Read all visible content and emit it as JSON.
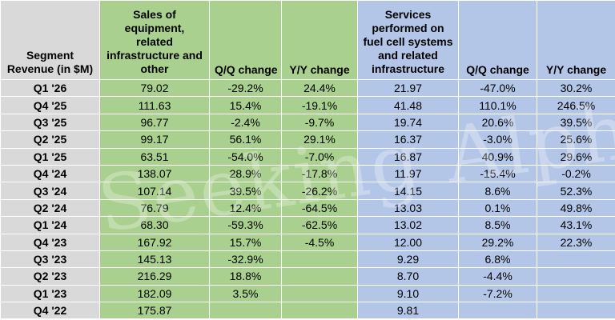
{
  "headers": {
    "segment": "Segment Revenue (in $M)",
    "equipment": "Sales of equipment, related infrastructure and other",
    "eq_qq": "Q/Q change",
    "eq_yy": "Y/Y change",
    "services": "Services performed on fuel cell systems and related infrastructure",
    "sv_qq": "Q/Q change",
    "sv_yy": "Y/Y change"
  },
  "rows": [
    {
      "q": "Q1 '26",
      "eq": "79.02",
      "eq_qq": "-29.2%",
      "eq_yy": "24.4%",
      "sv": "21.97",
      "sv_qq": "-47.0%",
      "sv_yy": "30.2%"
    },
    {
      "q": "Q4 '25",
      "eq": "111.63",
      "eq_qq": "15.4%",
      "eq_yy": "-19.1%",
      "sv": "41.48",
      "sv_qq": "110.1%",
      "sv_yy": "246.5%"
    },
    {
      "q": "Q3 '25",
      "eq": "96.77",
      "eq_qq": "-2.4%",
      "eq_yy": "-9.7%",
      "sv": "19.74",
      "sv_qq": "20.6%",
      "sv_yy": "39.5%"
    },
    {
      "q": "Q2 '25",
      "eq": "99.17",
      "eq_qq": "56.1%",
      "eq_yy": "29.1%",
      "sv": "16.37",
      "sv_qq": "-3.0%",
      "sv_yy": "25.6%"
    },
    {
      "q": "Q1 '25",
      "eq": "63.51",
      "eq_qq": "-54.0%",
      "eq_yy": "-7.0%",
      "sv": "16.87",
      "sv_qq": "40.9%",
      "sv_yy": "29.6%"
    },
    {
      "q": "Q4 '24",
      "eq": "138.07",
      "eq_qq": "28.9%",
      "eq_yy": "-17.8%",
      "sv": "11.97",
      "sv_qq": "-15.4%",
      "sv_yy": "-0.2%"
    },
    {
      "q": "Q3 '24",
      "eq": "107.14",
      "eq_qq": "39.5%",
      "eq_yy": "-26.2%",
      "sv": "14.15",
      "sv_qq": "8.6%",
      "sv_yy": "52.3%"
    },
    {
      "q": "Q2 '24",
      "eq": "76.79",
      "eq_qq": "12.4%",
      "eq_yy": "-64.5%",
      "sv": "13.03",
      "sv_qq": "0.1%",
      "sv_yy": "49.8%"
    },
    {
      "q": "Q1 '24",
      "eq": "68.30",
      "eq_qq": "-59.3%",
      "eq_yy": "-62.5%",
      "sv": "13.02",
      "sv_qq": "8.5%",
      "sv_yy": "43.1%"
    },
    {
      "q": "Q4 '23",
      "eq": "167.92",
      "eq_qq": "15.7%",
      "eq_yy": "-4.5%",
      "sv": "12.00",
      "sv_qq": "29.2%",
      "sv_yy": "22.3%"
    },
    {
      "q": "Q3 '23",
      "eq": "145.13",
      "eq_qq": "-32.9%",
      "eq_yy": "",
      "sv": "9.29",
      "sv_qq": "6.8%",
      "sv_yy": ""
    },
    {
      "q": "Q2 '23",
      "eq": "216.29",
      "eq_qq": "18.8%",
      "eq_yy": "",
      "sv": "8.70",
      "sv_qq": "-4.4%",
      "sv_yy": ""
    },
    {
      "q": "Q1 '23",
      "eq": "182.09",
      "eq_qq": "3.5%",
      "eq_yy": "",
      "sv": "9.10",
      "sv_qq": "-7.2%",
      "sv_yy": ""
    },
    {
      "q": "Q4 '22",
      "eq": "175.87",
      "eq_qq": "",
      "eq_yy": "",
      "sv": "9.81",
      "sv_qq": "",
      "sv_yy": ""
    }
  ],
  "watermark": "Seeking Alpha",
  "colors": {
    "segment_bg": "#d9d9d9",
    "equipment_bg": "#a9d08e",
    "services_bg": "#b4c6e7"
  }
}
